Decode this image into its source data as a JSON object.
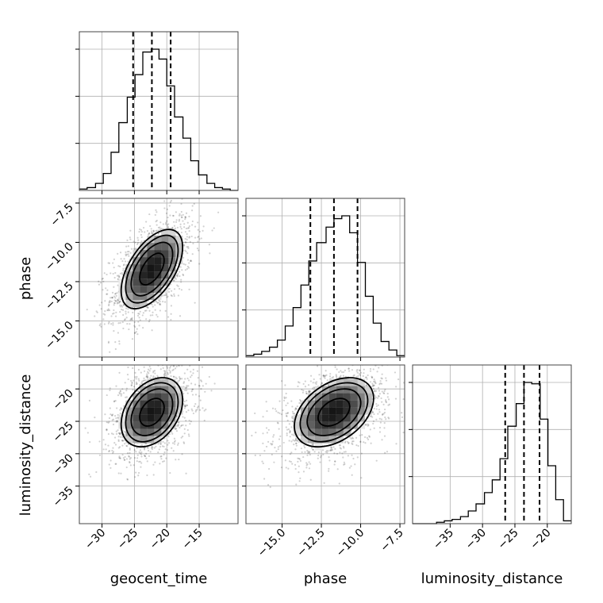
{
  "chart_data": {
    "type": "corner",
    "parameters": [
      "geocent_time",
      "phase",
      "luminosity_distance"
    ],
    "quantile_lines": "dashed",
    "grid": true,
    "ranges": {
      "geocent_time": [
        -33.5,
        -9.0
      ],
      "phase": [
        -17.3,
        -7.2
      ],
      "luminosity_distance": [
        -40.8,
        -16.3
      ]
    },
    "tick_labels": {
      "geocent_time": [
        "−30",
        "−25",
        "−20",
        "−15"
      ],
      "phase": [
        "−7.5",
        "−10.0",
        "−12.5",
        "−15.0"
      ],
      "phase_x": [
        "−15.0",
        "−12.5",
        "−10.0",
        "−7.5"
      ],
      "luminosity_distance": [
        "−20",
        "−25",
        "−30",
        "−35"
      ],
      "luminosity_distance_x": [
        "−35",
        "−30",
        "−25",
        "−20"
      ]
    },
    "tick_values": {
      "geocent_time": [
        -30,
        -25,
        -20,
        -15
      ],
      "phase": [
        -7.5,
        -10.0,
        -12.5,
        -15.0
      ],
      "phase_x": [
        -15.0,
        -12.5,
        -10.0,
        -7.5
      ],
      "luminosity_distance": [
        -20,
        -25,
        -30,
        -35
      ],
      "luminosity_distance_x": [
        -35,
        -30,
        -25,
        -20
      ]
    },
    "marginals": [
      {
        "param": "geocent_time",
        "quantiles": [
          -25.2,
          -22.3,
          -19.4
        ],
        "bin_edges": [
          -33.5,
          -32.3,
          -31.0,
          -29.8,
          -28.6,
          -27.4,
          -26.1,
          -24.9,
          -23.7,
          -22.4,
          -21.2,
          -20.0,
          -18.8,
          -17.5,
          -16.3,
          -15.1,
          -13.8,
          -12.6,
          -11.4,
          -10.2,
          -9.0
        ],
        "counts": [
          0.01,
          0.02,
          0.05,
          0.12,
          0.27,
          0.48,
          0.66,
          0.82,
          0.98,
          1.0,
          0.93,
          0.74,
          0.52,
          0.37,
          0.21,
          0.11,
          0.05,
          0.02,
          0.01,
          0.0
        ]
      },
      {
        "param": "phase",
        "quantiles": [
          -13.2,
          -11.7,
          -10.2
        ],
        "bin_edges": [
          -17.3,
          -16.8,
          -16.3,
          -15.8,
          -15.3,
          -14.8,
          -14.3,
          -13.8,
          -13.3,
          -12.8,
          -12.2,
          -11.7,
          -11.2,
          -10.7,
          -10.2,
          -9.7,
          -9.2,
          -8.7,
          -8.2,
          -7.7,
          -7.2
        ],
        "counts": [
          0.01,
          0.02,
          0.04,
          0.07,
          0.12,
          0.22,
          0.35,
          0.51,
          0.68,
          0.81,
          0.92,
          0.98,
          1.0,
          0.88,
          0.67,
          0.43,
          0.24,
          0.11,
          0.05,
          0.01
        ]
      },
      {
        "param": "luminosity_distance",
        "quantiles": [
          -26.5,
          -23.6,
          -21.2
        ],
        "bin_edges": [
          -40.8,
          -39.6,
          -38.3,
          -37.1,
          -35.9,
          -34.7,
          -33.4,
          -32.2,
          -31.0,
          -29.7,
          -28.5,
          -27.3,
          -26.1,
          -24.8,
          -23.6,
          -22.4,
          -21.1,
          -19.9,
          -18.7,
          -17.5,
          -16.3
        ],
        "counts": [
          0.0,
          0.0,
          0.0,
          0.01,
          0.02,
          0.03,
          0.05,
          0.09,
          0.14,
          0.22,
          0.31,
          0.46,
          0.69,
          0.85,
          1.0,
          0.99,
          0.74,
          0.41,
          0.17,
          0.02
        ]
      }
    ],
    "joint": [
      {
        "x": "geocent_time",
        "y": "phase",
        "mean": [
          -22.3,
          -11.7
        ],
        "sd": [
          3.2,
          1.7
        ],
        "corr": 0.55
      },
      {
        "x": "geocent_time",
        "y": "luminosity_distance",
        "mean": [
          -22.3,
          -23.6
        ],
        "sd": [
          3.2,
          3.6
        ],
        "corr": 0.35
      },
      {
        "x": "phase",
        "y": "luminosity_distance",
        "mean": [
          -11.7,
          -23.6
        ],
        "sd": [
          1.7,
          3.6
        ],
        "corr": 0.4
      }
    ]
  }
}
